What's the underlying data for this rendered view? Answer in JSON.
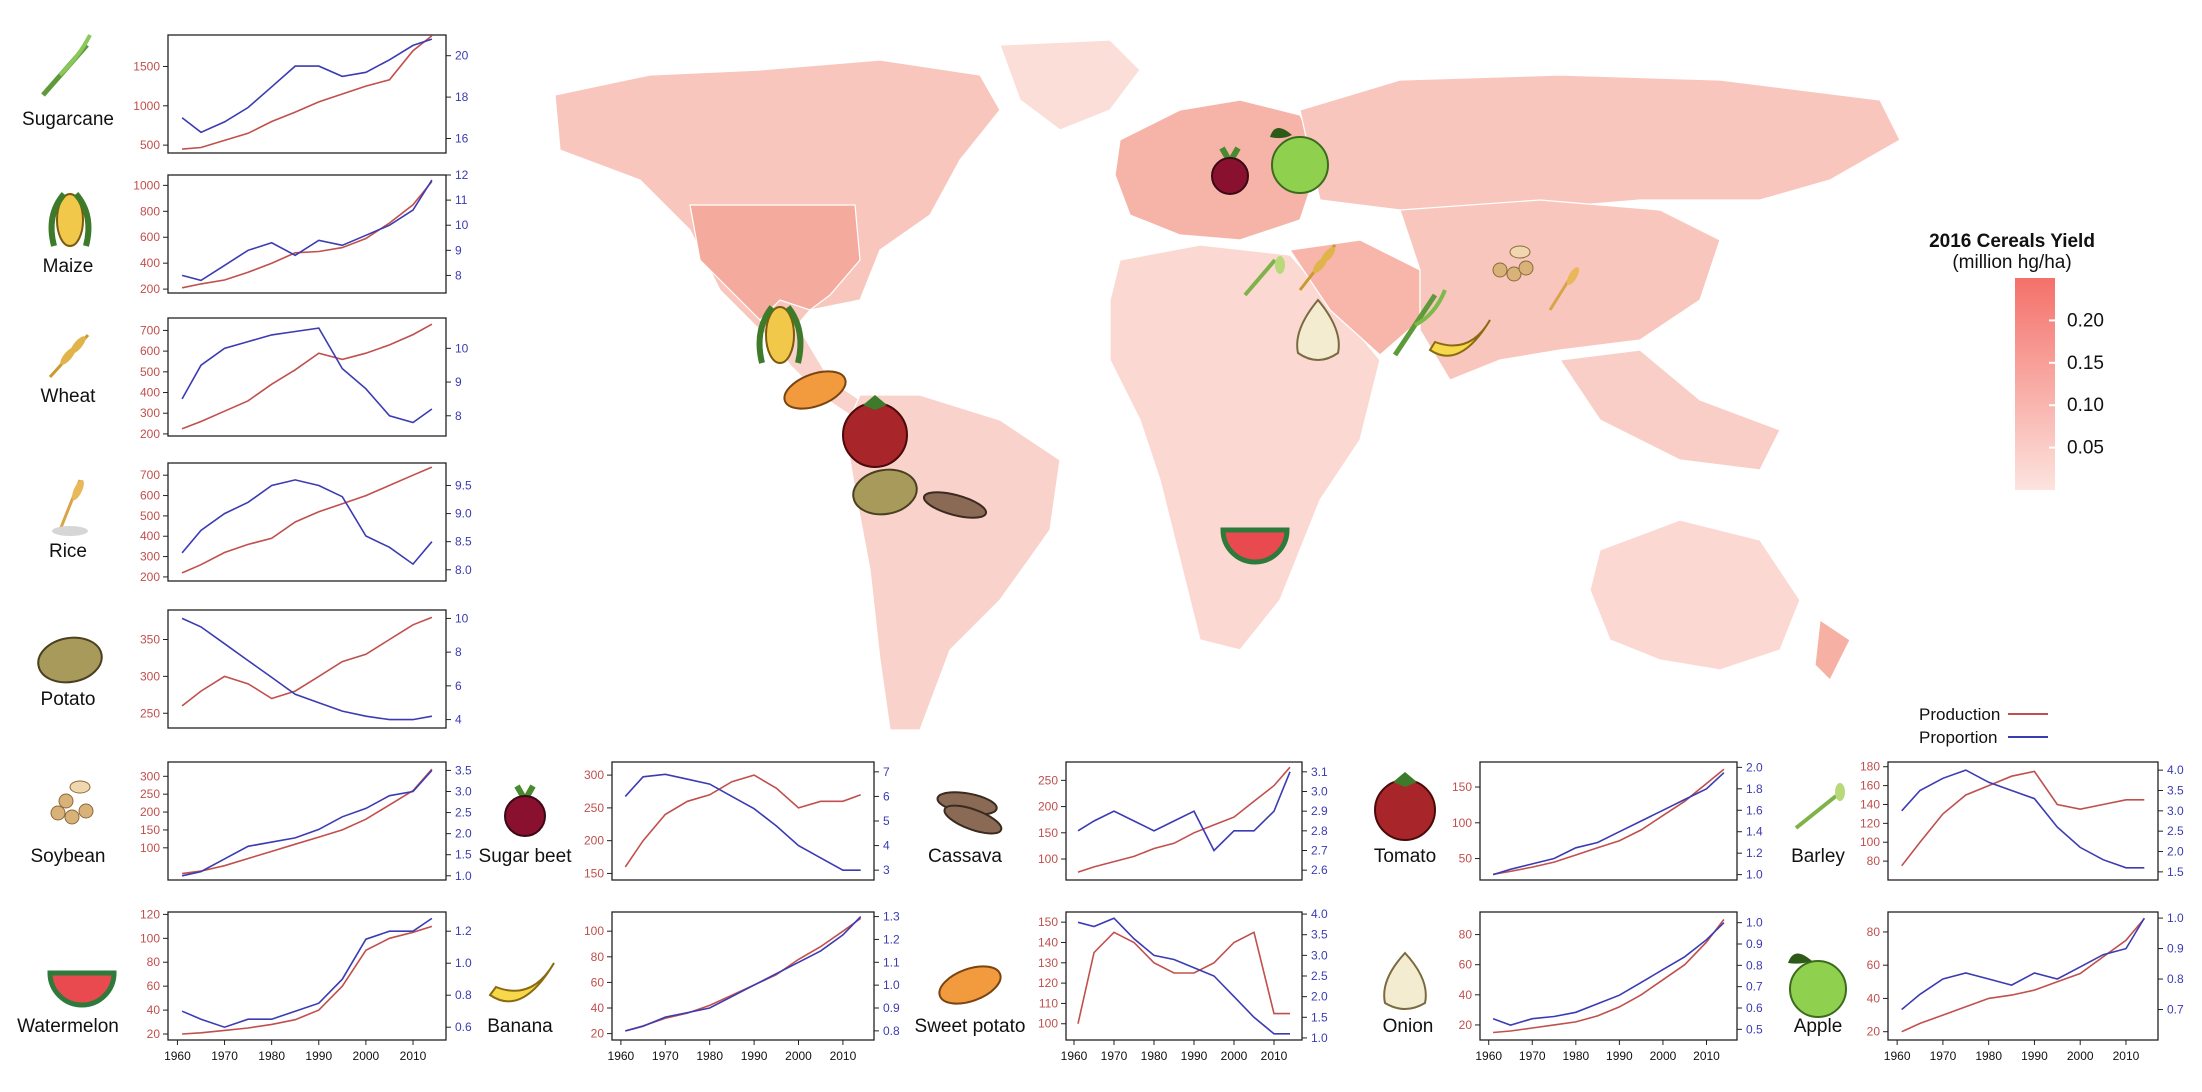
{
  "legend": {
    "production": "Production",
    "proportion": "Proportion"
  },
  "colorbar": {
    "title_line1": "2016 Cereals Yield",
    "title_line2": "(million hg/ha)",
    "ticks": [
      "0.20",
      "0.15",
      "0.10",
      "0.05"
    ],
    "tick_values": [
      0.2,
      0.15,
      0.1,
      0.05
    ],
    "range": [
      0.0,
      0.25
    ],
    "color_low": "#fde3de",
    "color_high": "#f4716a"
  },
  "colors": {
    "production": "#c0504d",
    "proportion": "#3b3bb3",
    "map_base": "#f9d2cb",
    "axis": "#222222"
  },
  "map_icons": [
    "beet-icon",
    "apple-icon",
    "wheat-icon",
    "barley-icon",
    "soybean-icon",
    "onion-icon",
    "sugarcane-icon",
    "banana-icon",
    "maize-icon",
    "sweet-potato-icon",
    "tomato-icon",
    "potato-icon",
    "cassava-icon",
    "watermelon-icon"
  ],
  "chart_data": [
    {
      "type": "line",
      "name": "Sugarcane",
      "icon": "sugarcane-icon",
      "x": [
        1961,
        1965,
        1970,
        1975,
        1980,
        1985,
        1990,
        1995,
        2000,
        2005,
        2010,
        2014
      ],
      "series": [
        {
          "name": "Production",
          "axis": "left",
          "values": [
            450,
            470,
            560,
            650,
            800,
            920,
            1050,
            1150,
            1250,
            1330,
            1700,
            1890
          ]
        },
        {
          "name": "Proportion",
          "axis": "right",
          "values": [
            17.0,
            16.3,
            16.8,
            17.5,
            18.5,
            19.5,
            19.5,
            19.0,
            19.2,
            19.8,
            20.5,
            20.8
          ]
        }
      ],
      "ylim_left": [
        400,
        1900
      ],
      "yticks_left": [
        500,
        1000,
        1500
      ],
      "ylim_right": [
        15.3,
        21.0
      ],
      "yticks_right": [
        16,
        18,
        20
      ]
    },
    {
      "type": "line",
      "name": "Maize",
      "icon": "maize-icon",
      "x": [
        1961,
        1965,
        1970,
        1975,
        1980,
        1985,
        1990,
        1995,
        2000,
        2005,
        2010,
        2014
      ],
      "series": [
        {
          "name": "Production",
          "axis": "left",
          "values": [
            210,
            240,
            270,
            330,
            400,
            480,
            490,
            520,
            590,
            710,
            850,
            1030
          ]
        },
        {
          "name": "Proportion",
          "axis": "right",
          "values": [
            8.0,
            7.8,
            8.4,
            9.0,
            9.3,
            8.8,
            9.4,
            9.2,
            9.6,
            10.0,
            10.6,
            11.8
          ]
        }
      ],
      "ylim_left": [
        170,
        1080
      ],
      "yticks_left": [
        200,
        400,
        600,
        800,
        1000
      ],
      "ylim_right": [
        7.3,
        12.0
      ],
      "yticks_right": [
        8,
        9,
        10,
        11,
        12
      ]
    },
    {
      "type": "line",
      "name": "Wheat",
      "icon": "wheat-icon",
      "x": [
        1961,
        1965,
        1970,
        1975,
        1980,
        1985,
        1990,
        1995,
        2000,
        2005,
        2010,
        2014
      ],
      "series": [
        {
          "name": "Production",
          "axis": "left",
          "values": [
            225,
            260,
            310,
            360,
            440,
            510,
            590,
            560,
            590,
            630,
            680,
            730
          ]
        },
        {
          "name": "Proportion",
          "axis": "right",
          "values": [
            8.5,
            9.5,
            10.0,
            10.2,
            10.4,
            10.5,
            10.6,
            9.4,
            8.8,
            8.0,
            7.8,
            8.2
          ]
        }
      ],
      "ylim_left": [
        190,
        760
      ],
      "yticks_left": [
        200,
        300,
        400,
        500,
        600,
        700
      ],
      "ylim_right": [
        7.4,
        10.9
      ],
      "yticks_right": [
        8,
        9,
        10
      ]
    },
    {
      "type": "line",
      "name": "Rice",
      "icon": "rice-icon",
      "x": [
        1961,
        1965,
        1970,
        1975,
        1980,
        1985,
        1990,
        1995,
        2000,
        2005,
        2010,
        2014
      ],
      "series": [
        {
          "name": "Production",
          "axis": "left",
          "values": [
            220,
            260,
            320,
            360,
            390,
            470,
            520,
            560,
            600,
            650,
            700,
            740
          ]
        },
        {
          "name": "Proportion",
          "axis": "right",
          "values": [
            8.3,
            8.7,
            9.0,
            9.2,
            9.5,
            9.6,
            9.5,
            9.3,
            8.6,
            8.4,
            8.1,
            8.5
          ]
        }
      ],
      "ylim_left": [
        180,
        760
      ],
      "yticks_left": [
        200,
        300,
        400,
        500,
        600,
        700
      ],
      "ylim_right": [
        7.8,
        9.9
      ],
      "yticks_right": [
        8.0,
        8.5,
        9.0,
        9.5
      ]
    },
    {
      "type": "line",
      "name": "Potato",
      "icon": "potato-icon",
      "x": [
        1961,
        1965,
        1970,
        1975,
        1980,
        1985,
        1990,
        1995,
        2000,
        2005,
        2010,
        2014
      ],
      "series": [
        {
          "name": "Production",
          "axis": "left",
          "values": [
            260,
            280,
            300,
            290,
            270,
            280,
            300,
            320,
            330,
            350,
            370,
            380
          ]
        },
        {
          "name": "Proportion",
          "axis": "right",
          "values": [
            10.0,
            9.5,
            8.5,
            7.5,
            6.5,
            5.5,
            5.0,
            4.5,
            4.2,
            4.0,
            4.0,
            4.2
          ]
        }
      ],
      "ylim_left": [
        230,
        390
      ],
      "yticks_left": [
        250,
        300,
        350
      ],
      "ylim_right": [
        3.5,
        10.5
      ],
      "yticks_right": [
        4,
        6,
        8,
        10
      ]
    },
    {
      "type": "line",
      "name": "Soybean",
      "icon": "soybean-icon",
      "x": [
        1961,
        1965,
        1970,
        1975,
        1980,
        1985,
        1990,
        1995,
        2000,
        2005,
        2010,
        2014
      ],
      "series": [
        {
          "name": "Production",
          "axis": "left",
          "values": [
            28,
            35,
            50,
            70,
            90,
            110,
            130,
            150,
            180,
            220,
            260,
            320
          ]
        },
        {
          "name": "Proportion",
          "axis": "right",
          "values": [
            1.0,
            1.1,
            1.4,
            1.7,
            1.8,
            1.9,
            2.1,
            2.4,
            2.6,
            2.9,
            3.0,
            3.5
          ]
        }
      ],
      "ylim_left": [
        10,
        340
      ],
      "yticks_left": [
        100,
        150,
        200,
        250,
        300
      ],
      "ylim_right": [
        0.9,
        3.7
      ],
      "yticks_right": [
        1.0,
        1.5,
        2.0,
        2.5,
        3.0,
        3.5
      ]
    },
    {
      "type": "line",
      "name": "Sugar beet",
      "icon": "beet-icon",
      "x": [
        1961,
        1965,
        1970,
        1975,
        1980,
        1985,
        1990,
        1995,
        2000,
        2005,
        2010,
        2014
      ],
      "series": [
        {
          "name": "Production",
          "axis": "left",
          "values": [
            160,
            200,
            240,
            260,
            270,
            290,
            300,
            280,
            250,
            260,
            260,
            270
          ]
        },
        {
          "name": "Proportion",
          "axis": "right",
          "values": [
            6.0,
            6.8,
            6.9,
            6.7,
            6.5,
            6.0,
            5.5,
            4.8,
            4.0,
            3.5,
            3.0,
            3.0
          ]
        }
      ],
      "ylim_left": [
        140,
        320
      ],
      "yticks_left": [
        150,
        200,
        250,
        300
      ],
      "ylim_right": [
        2.6,
        7.4
      ],
      "yticks_right": [
        3,
        4,
        5,
        6,
        7
      ]
    },
    {
      "type": "line",
      "name": "Cassava",
      "icon": "cassava-icon",
      "x": [
        1961,
        1965,
        1970,
        1975,
        1980,
        1985,
        1990,
        1995,
        2000,
        2005,
        2010,
        2014
      ],
      "series": [
        {
          "name": "Production",
          "axis": "left",
          "values": [
            75,
            85,
            95,
            105,
            120,
            130,
            150,
            165,
            180,
            210,
            240,
            275
          ]
        },
        {
          "name": "Proportion",
          "axis": "right",
          "values": [
            2.8,
            2.85,
            2.9,
            2.85,
            2.8,
            2.85,
            2.9,
            2.7,
            2.8,
            2.8,
            2.9,
            3.1
          ]
        }
      ],
      "ylim_left": [
        60,
        285
      ],
      "yticks_left": [
        100,
        150,
        200,
        250
      ],
      "ylim_right": [
        2.55,
        3.15
      ],
      "yticks_right": [
        2.6,
        2.7,
        2.8,
        2.9,
        3.0,
        3.1
      ]
    },
    {
      "type": "line",
      "name": "Tomato",
      "icon": "tomato-icon",
      "x": [
        1961,
        1965,
        1970,
        1975,
        1980,
        1985,
        1990,
        1995,
        2000,
        2005,
        2010,
        2014
      ],
      "series": [
        {
          "name": "Production",
          "axis": "left",
          "values": [
            28,
            32,
            38,
            45,
            55,
            65,
            75,
            90,
            110,
            130,
            155,
            175
          ]
        },
        {
          "name": "Proportion",
          "axis": "right",
          "values": [
            1.0,
            1.05,
            1.1,
            1.15,
            1.25,
            1.3,
            1.4,
            1.5,
            1.6,
            1.7,
            1.8,
            1.95
          ]
        }
      ],
      "ylim_left": [
        20,
        185
      ],
      "yticks_left": [
        50,
        100,
        150
      ],
      "ylim_right": [
        0.95,
        2.05
      ],
      "yticks_right": [
        1.0,
        1.2,
        1.4,
        1.6,
        1.8,
        2.0
      ]
    },
    {
      "type": "line",
      "name": "Barley",
      "icon": "barley-icon",
      "x": [
        1961,
        1965,
        1970,
        1975,
        1980,
        1985,
        1990,
        1995,
        2000,
        2005,
        2010,
        2014
      ],
      "series": [
        {
          "name": "Production",
          "axis": "left",
          "values": [
            75,
            100,
            130,
            150,
            160,
            170,
            175,
            140,
            135,
            140,
            145,
            145
          ]
        },
        {
          "name": "Proportion",
          "axis": "right",
          "values": [
            3.0,
            3.5,
            3.8,
            4.0,
            3.7,
            3.5,
            3.3,
            2.6,
            2.1,
            1.8,
            1.6,
            1.6
          ]
        }
      ],
      "ylim_left": [
        60,
        185
      ],
      "yticks_left": [
        80,
        100,
        120,
        140,
        160,
        180
      ],
      "ylim_right": [
        1.3,
        4.2
      ],
      "yticks_right": [
        1.5,
        2.0,
        2.5,
        3.0,
        3.5,
        4.0
      ]
    },
    {
      "type": "line",
      "name": "Watermelon",
      "icon": "watermelon-icon",
      "x": [
        1961,
        1965,
        1970,
        1975,
        1980,
        1985,
        1990,
        1995,
        2000,
        2005,
        2010,
        2014
      ],
      "series": [
        {
          "name": "Production",
          "axis": "left",
          "values": [
            20,
            21,
            23,
            25,
            28,
            32,
            40,
            60,
            90,
            100,
            105,
            110
          ]
        },
        {
          "name": "Proportion",
          "axis": "right",
          "values": [
            0.7,
            0.65,
            0.6,
            0.65,
            0.65,
            0.7,
            0.75,
            0.9,
            1.15,
            1.2,
            1.2,
            1.28
          ]
        }
      ],
      "ylim_left": [
        15,
        122
      ],
      "yticks_left": [
        20,
        40,
        60,
        80,
        100,
        120
      ],
      "ylim_right": [
        0.52,
        1.32
      ],
      "yticks_right": [
        0.6,
        0.8,
        1.0,
        1.2
      ]
    },
    {
      "type": "line",
      "name": "Banana",
      "icon": "banana-icon",
      "x": [
        1961,
        1965,
        1970,
        1975,
        1980,
        1985,
        1990,
        1995,
        2000,
        2005,
        2010,
        2014
      ],
      "series": [
        {
          "name": "Production",
          "axis": "left",
          "values": [
            22,
            26,
            32,
            36,
            42,
            50,
            58,
            66,
            78,
            88,
            100,
            110
          ]
        },
        {
          "name": "Proportion",
          "axis": "right",
          "values": [
            0.8,
            0.82,
            0.86,
            0.88,
            0.9,
            0.95,
            1.0,
            1.05,
            1.1,
            1.15,
            1.22,
            1.3
          ]
        }
      ],
      "ylim_left": [
        15,
        115
      ],
      "yticks_left": [
        20,
        40,
        60,
        80,
        100
      ],
      "ylim_right": [
        0.76,
        1.32
      ],
      "yticks_right": [
        0.8,
        0.9,
        1.0,
        1.1,
        1.2,
        1.3
      ]
    },
    {
      "type": "line",
      "name": "Sweet potato",
      "icon": "sweet-potato-icon",
      "x": [
        1961,
        1965,
        1970,
        1975,
        1980,
        1985,
        1990,
        1995,
        2000,
        2005,
        2010,
        2014
      ],
      "series": [
        {
          "name": "Production",
          "axis": "left",
          "values": [
            100,
            135,
            145,
            140,
            130,
            125,
            125,
            130,
            140,
            145,
            105,
            105
          ]
        },
        {
          "name": "Proportion",
          "axis": "right",
          "values": [
            3.8,
            3.7,
            3.9,
            3.4,
            3.0,
            2.9,
            2.7,
            2.5,
            2.0,
            1.5,
            1.1,
            1.1
          ]
        }
      ],
      "ylim_left": [
        92,
        155
      ],
      "yticks_left": [
        100,
        110,
        120,
        130,
        140,
        150
      ],
      "ylim_right": [
        0.95,
        4.05
      ],
      "yticks_right": [
        1.0,
        1.5,
        2.0,
        2.5,
        3.0,
        3.5,
        4.0
      ]
    },
    {
      "type": "line",
      "name": "Onion",
      "icon": "onion-icon",
      "x": [
        1961,
        1965,
        1970,
        1975,
        1980,
        1985,
        1990,
        1995,
        2000,
        2005,
        2010,
        2014
      ],
      "series": [
        {
          "name": "Production",
          "axis": "left",
          "values": [
            15,
            16,
            18,
            20,
            22,
            26,
            32,
            40,
            50,
            60,
            75,
            90
          ]
        },
        {
          "name": "Proportion",
          "axis": "right",
          "values": [
            0.55,
            0.52,
            0.55,
            0.56,
            0.58,
            0.62,
            0.66,
            0.72,
            0.78,
            0.84,
            0.92,
            1.0
          ]
        }
      ],
      "ylim_left": [
        10,
        95
      ],
      "yticks_left": [
        20,
        40,
        60,
        80
      ],
      "ylim_right": [
        0.45,
        1.05
      ],
      "yticks_right": [
        0.5,
        0.6,
        0.7,
        0.8,
        0.9,
        1.0
      ]
    },
    {
      "type": "line",
      "name": "Apple",
      "icon": "apple-icon",
      "x": [
        1961,
        1965,
        1970,
        1975,
        1980,
        1985,
        1990,
        1995,
        2000,
        2005,
        2010,
        2014
      ],
      "series": [
        {
          "name": "Production",
          "axis": "left",
          "values": [
            20,
            25,
            30,
            35,
            40,
            42,
            45,
            50,
            55,
            65,
            75,
            88
          ]
        },
        {
          "name": "Proportion",
          "axis": "right",
          "values": [
            0.7,
            0.75,
            0.8,
            0.82,
            0.8,
            0.78,
            0.82,
            0.8,
            0.84,
            0.88,
            0.9,
            1.0
          ]
        }
      ],
      "ylim_left": [
        15,
        92
      ],
      "yticks_left": [
        20,
        40,
        60,
        80
      ],
      "ylim_right": [
        0.6,
        1.02
      ],
      "yticks_right": [
        0.7,
        0.8,
        0.9,
        1.0
      ]
    }
  ],
  "x_axis_ticks": [
    "1960",
    "1970",
    "1980",
    "1990",
    "2000",
    "2010"
  ]
}
